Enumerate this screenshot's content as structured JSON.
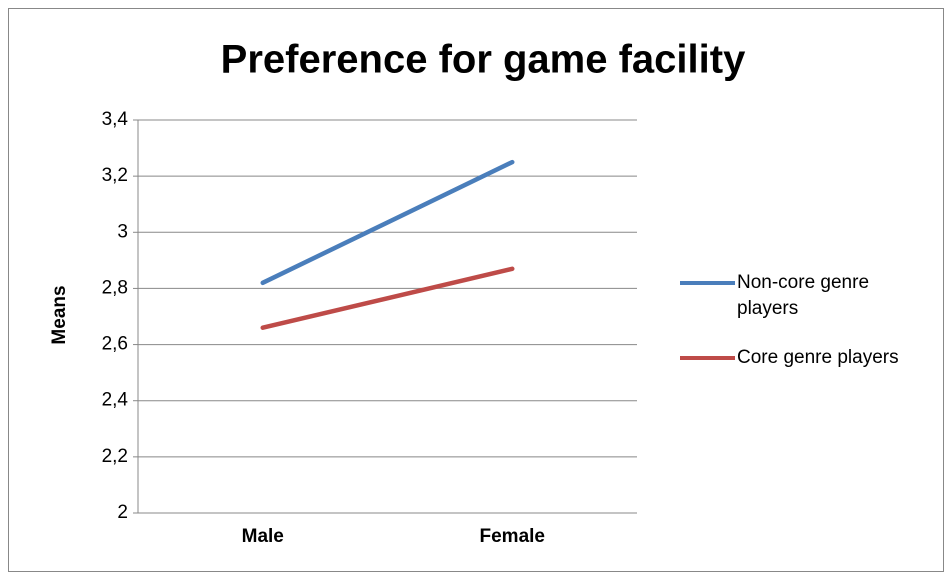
{
  "chart_data": {
    "type": "line",
    "title": "Preference for game facility",
    "y_label": "Means",
    "categories": [
      "Male",
      "Female"
    ],
    "series": [
      {
        "name": "Non-core genre players",
        "color": "#4a7ebb",
        "values": [
          2.82,
          3.25
        ]
      },
      {
        "name": "Core genre players",
        "color": "#be4b48",
        "values": [
          2.66,
          2.87
        ]
      }
    ],
    "ylim": [
      2,
      3.4
    ],
    "yticks": [
      2,
      {
        "value": 2.2,
        "label": "2,2"
      },
      {
        "value": 2.4,
        "label": "2,4"
      },
      {
        "value": 2.6,
        "label": "2,6"
      },
      {
        "value": 2.8,
        "label": "2,8"
      },
      3,
      {
        "value": 3.2,
        "label": "3,2"
      },
      {
        "value": 3.4,
        "label": "3,4"
      }
    ],
    "grid": true,
    "legend": "right"
  }
}
